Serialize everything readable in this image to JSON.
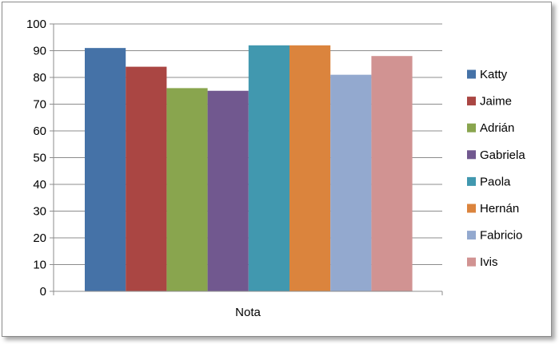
{
  "chart_data": {
    "type": "bar",
    "categories": [
      "Nota"
    ],
    "series": [
      {
        "name": "Katty",
        "values": [
          91
        ],
        "color": "#4572a7"
      },
      {
        "name": "Jaime",
        "values": [
          84
        ],
        "color": "#aa4643"
      },
      {
        "name": "Adrián",
        "values": [
          76
        ],
        "color": "#89a54e"
      },
      {
        "name": "Gabriela",
        "values": [
          75
        ],
        "color": "#71588f"
      },
      {
        "name": "Paola",
        "values": [
          92
        ],
        "color": "#4198af"
      },
      {
        "name": "Hernán",
        "values": [
          92
        ],
        "color": "#db843d"
      },
      {
        "name": "Fabricio",
        "values": [
          81
        ],
        "color": "#93a9cf"
      },
      {
        "name": "Ivis",
        "values": [
          88
        ],
        "color": "#d19392"
      }
    ],
    "ylim": [
      0,
      100
    ],
    "yticks": [
      0,
      10,
      20,
      30,
      40,
      50,
      60,
      70,
      80,
      90,
      100
    ],
    "grid": true,
    "legend": "right",
    "title": "",
    "xlabel": "",
    "ylabel": ""
  }
}
